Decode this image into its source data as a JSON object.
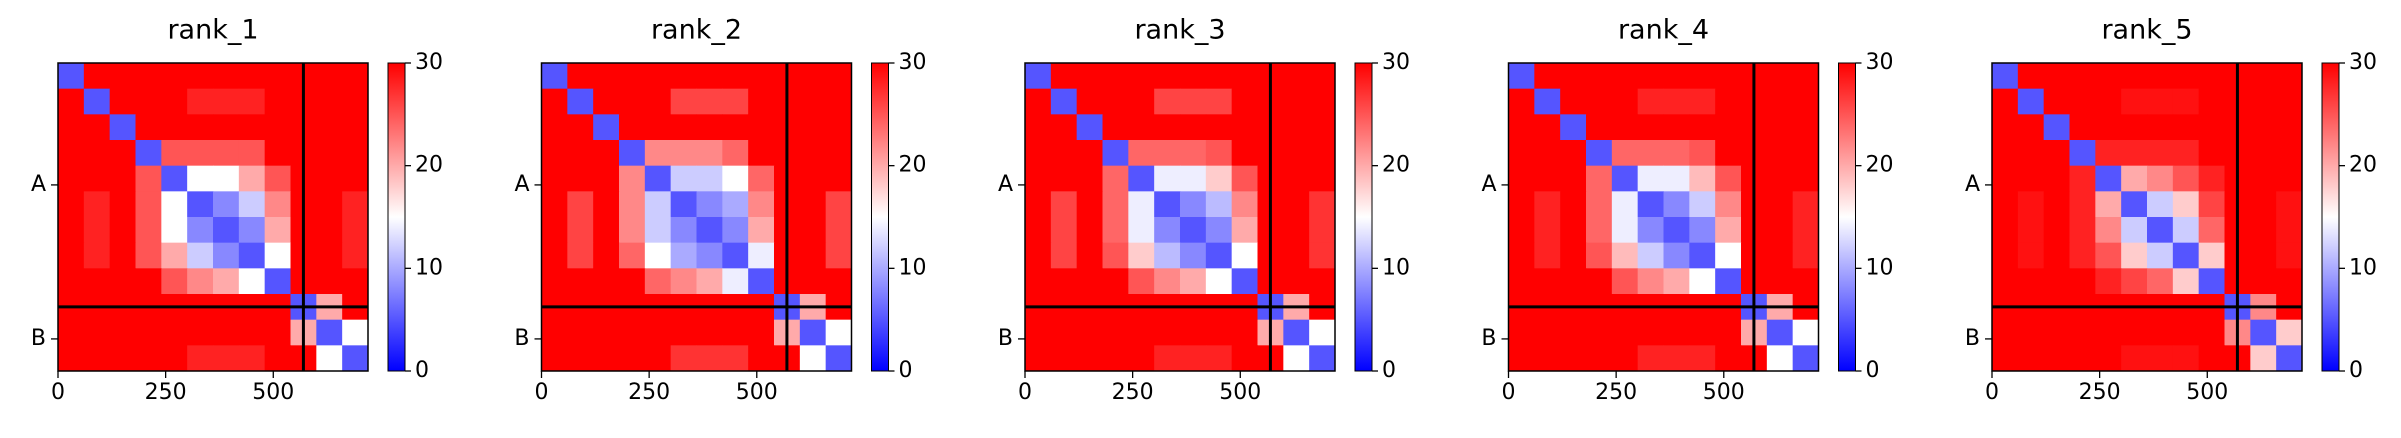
{
  "chart_data": [
    {
      "type": "heatmap",
      "title": "rank_1",
      "xlim": [
        0,
        720
      ],
      "ylim": [
        720,
        0
      ],
      "xticks": [
        0,
        250,
        500
      ],
      "yticks": [
        {
          "value": 285,
          "label": "A"
        },
        {
          "value": 645,
          "label": "B"
        }
      ],
      "chain_breaks": [
        570
      ],
      "colorbar": {
        "lim": [
          0,
          30
        ],
        "ticks": [
          0,
          10,
          20,
          30
        ],
        "colors": [
          "#0000ff",
          "#ffffff",
          "#ff0000"
        ]
      },
      "z": [
        [
          5,
          30,
          30,
          30,
          30,
          30,
          30,
          30,
          30,
          30,
          30,
          30
        ],
        [
          30,
          5,
          30,
          30,
          30,
          28,
          28,
          28,
          30,
          30,
          30,
          30
        ],
        [
          30,
          30,
          5,
          30,
          30,
          30,
          30,
          30,
          30,
          30,
          30,
          30
        ],
        [
          30,
          30,
          30,
          5,
          25,
          25,
          25,
          25,
          30,
          30,
          30,
          30
        ],
        [
          30,
          30,
          30,
          25,
          5,
          15,
          15,
          20,
          25,
          30,
          30,
          30
        ],
        [
          30,
          28,
          30,
          25,
          15,
          5,
          8,
          12,
          22,
          30,
          30,
          28
        ],
        [
          30,
          28,
          30,
          25,
          15,
          8,
          5,
          8,
          20,
          30,
          30,
          28
        ],
        [
          30,
          28,
          30,
          25,
          20,
          12,
          8,
          5,
          15,
          30,
          30,
          28
        ],
        [
          30,
          30,
          30,
          30,
          25,
          22,
          20,
          15,
          5,
          30,
          30,
          30
        ],
        [
          30,
          30,
          30,
          30,
          30,
          30,
          30,
          30,
          30,
          5,
          20,
          30
        ],
        [
          30,
          30,
          30,
          30,
          30,
          30,
          30,
          30,
          30,
          20,
          5,
          15
        ],
        [
          30,
          30,
          30,
          30,
          30,
          28,
          28,
          28,
          30,
          30,
          15,
          5
        ]
      ]
    },
    {
      "type": "heatmap",
      "title": "rank_2",
      "xlim": [
        0,
        720
      ],
      "ylim": [
        720,
        0
      ],
      "xticks": [
        0,
        250,
        500
      ],
      "yticks": [
        {
          "value": 285,
          "label": "A"
        },
        {
          "value": 645,
          "label": "B"
        }
      ],
      "chain_breaks": [
        570
      ],
      "colorbar": {
        "lim": [
          0,
          30
        ],
        "ticks": [
          0,
          10,
          20,
          30
        ],
        "colors": [
          "#0000ff",
          "#ffffff",
          "#ff0000"
        ]
      },
      "z": [
        [
          5,
          30,
          30,
          30,
          30,
          30,
          30,
          30,
          30,
          30,
          30,
          30
        ],
        [
          30,
          5,
          30,
          30,
          30,
          26,
          26,
          26,
          30,
          30,
          30,
          30
        ],
        [
          30,
          30,
          5,
          30,
          30,
          30,
          30,
          30,
          30,
          30,
          30,
          30
        ],
        [
          30,
          30,
          30,
          5,
          22,
          22,
          22,
          24,
          30,
          30,
          30,
          30
        ],
        [
          30,
          30,
          30,
          22,
          5,
          12,
          12,
          15,
          24,
          30,
          30,
          30
        ],
        [
          30,
          26,
          30,
          22,
          12,
          5,
          8,
          10,
          22,
          30,
          30,
          26
        ],
        [
          30,
          26,
          30,
          22,
          12,
          8,
          5,
          8,
          20,
          30,
          30,
          26
        ],
        [
          30,
          26,
          30,
          24,
          15,
          10,
          8,
          5,
          14,
          30,
          30,
          26
        ],
        [
          30,
          30,
          30,
          30,
          24,
          22,
          20,
          14,
          5,
          30,
          30,
          30
        ],
        [
          30,
          30,
          30,
          30,
          30,
          30,
          30,
          30,
          30,
          5,
          20,
          30
        ],
        [
          30,
          30,
          30,
          30,
          30,
          30,
          30,
          30,
          30,
          20,
          5,
          15
        ],
        [
          30,
          30,
          30,
          30,
          30,
          27,
          27,
          27,
          30,
          30,
          15,
          5
        ]
      ]
    },
    {
      "type": "heatmap",
      "title": "rank_3",
      "xlim": [
        0,
        720
      ],
      "ylim": [
        720,
        0
      ],
      "xticks": [
        0,
        250,
        500
      ],
      "yticks": [
        {
          "value": 285,
          "label": "A"
        },
        {
          "value": 645,
          "label": "B"
        }
      ],
      "chain_breaks": [
        570
      ],
      "colorbar": {
        "lim": [
          0,
          30
        ],
        "ticks": [
          0,
          10,
          20,
          30
        ],
        "colors": [
          "#0000ff",
          "#ffffff",
          "#ff0000"
        ]
      },
      "z": [
        [
          5,
          30,
          30,
          30,
          30,
          30,
          30,
          30,
          30,
          30,
          30,
          30
        ],
        [
          30,
          5,
          30,
          30,
          30,
          26,
          26,
          26,
          30,
          30,
          30,
          30
        ],
        [
          30,
          30,
          5,
          30,
          30,
          30,
          30,
          30,
          30,
          30,
          30,
          30
        ],
        [
          30,
          30,
          30,
          5,
          24,
          24,
          24,
          25,
          30,
          30,
          30,
          30
        ],
        [
          30,
          30,
          30,
          24,
          5,
          14,
          14,
          18,
          25,
          30,
          30,
          30
        ],
        [
          30,
          26,
          30,
          24,
          14,
          5,
          8,
          11,
          22,
          30,
          30,
          27
        ],
        [
          30,
          26,
          30,
          24,
          14,
          8,
          5,
          8,
          20,
          30,
          30,
          27
        ],
        [
          30,
          26,
          30,
          25,
          18,
          11,
          8,
          5,
          15,
          30,
          30,
          27
        ],
        [
          30,
          30,
          30,
          30,
          25,
          22,
          20,
          15,
          5,
          30,
          30,
          30
        ],
        [
          30,
          30,
          30,
          30,
          30,
          30,
          30,
          30,
          30,
          5,
          20,
          30
        ],
        [
          30,
          30,
          30,
          30,
          30,
          30,
          30,
          30,
          30,
          20,
          5,
          15
        ],
        [
          30,
          30,
          30,
          30,
          30,
          28,
          28,
          28,
          30,
          30,
          15,
          5
        ]
      ]
    },
    {
      "type": "heatmap",
      "title": "rank_4",
      "xlim": [
        0,
        720
      ],
      "ylim": [
        720,
        0
      ],
      "xticks": [
        0,
        250,
        500
      ],
      "yticks": [
        {
          "value": 285,
          "label": "A"
        },
        {
          "value": 645,
          "label": "B"
        }
      ],
      "chain_breaks": [
        570
      ],
      "colorbar": {
        "lim": [
          0,
          30
        ],
        "ticks": [
          0,
          10,
          20,
          30
        ],
        "colors": [
          "#0000ff",
          "#ffffff",
          "#ff0000"
        ]
      },
      "z": [
        [
          5,
          30,
          30,
          30,
          30,
          30,
          30,
          30,
          30,
          30,
          30,
          30
        ],
        [
          30,
          5,
          30,
          30,
          30,
          28,
          28,
          28,
          30,
          30,
          30,
          30
        ],
        [
          30,
          30,
          5,
          30,
          30,
          30,
          30,
          30,
          30,
          30,
          30,
          30
        ],
        [
          30,
          30,
          30,
          5,
          24,
          24,
          24,
          25,
          30,
          30,
          30,
          30
        ],
        [
          30,
          30,
          30,
          24,
          5,
          14,
          14,
          19,
          25,
          30,
          30,
          30
        ],
        [
          30,
          28,
          30,
          24,
          14,
          5,
          8,
          12,
          22,
          30,
          30,
          28
        ],
        [
          30,
          28,
          30,
          24,
          14,
          8,
          5,
          8,
          20,
          30,
          30,
          28
        ],
        [
          30,
          28,
          30,
          25,
          19,
          12,
          8,
          5,
          15,
          30,
          30,
          28
        ],
        [
          30,
          30,
          30,
          30,
          25,
          22,
          20,
          15,
          5,
          30,
          30,
          30
        ],
        [
          30,
          30,
          30,
          30,
          30,
          30,
          30,
          30,
          30,
          5,
          20,
          30
        ],
        [
          30,
          30,
          30,
          30,
          30,
          30,
          30,
          30,
          30,
          20,
          5,
          15
        ],
        [
          30,
          30,
          30,
          30,
          30,
          28,
          28,
          28,
          30,
          30,
          15,
          5
        ]
      ]
    },
    {
      "type": "heatmap",
      "title": "rank_5",
      "xlim": [
        0,
        720
      ],
      "ylim": [
        720,
        0
      ],
      "xticks": [
        0,
        250,
        500
      ],
      "yticks": [
        {
          "value": 285,
          "label": "A"
        },
        {
          "value": 645,
          "label": "B"
        }
      ],
      "chain_breaks": [
        570
      ],
      "colorbar": {
        "lim": [
          0,
          30
        ],
        "ticks": [
          0,
          10,
          20,
          30
        ],
        "colors": [
          "#0000ff",
          "#ffffff",
          "#ff0000"
        ]
      },
      "z": [
        [
          5,
          30,
          30,
          30,
          30,
          30,
          30,
          30,
          30,
          30,
          30,
          30
        ],
        [
          30,
          5,
          30,
          30,
          30,
          29,
          29,
          29,
          30,
          30,
          30,
          30
        ],
        [
          30,
          30,
          5,
          30,
          30,
          30,
          30,
          30,
          30,
          30,
          30,
          30
        ],
        [
          30,
          30,
          30,
          5,
          28,
          28,
          28,
          28,
          30,
          30,
          30,
          30
        ],
        [
          30,
          30,
          30,
          28,
          5,
          20,
          22,
          25,
          28,
          30,
          30,
          30
        ],
        [
          30,
          29,
          30,
          28,
          20,
          5,
          12,
          18,
          26,
          30,
          30,
          29
        ],
        [
          30,
          29,
          30,
          28,
          22,
          12,
          5,
          12,
          24,
          30,
          30,
          29
        ],
        [
          30,
          29,
          30,
          28,
          25,
          18,
          12,
          5,
          18,
          30,
          30,
          29
        ],
        [
          30,
          30,
          30,
          30,
          28,
          26,
          24,
          18,
          5,
          30,
          30,
          30
        ],
        [
          30,
          30,
          30,
          30,
          30,
          30,
          30,
          30,
          30,
          5,
          22,
          30
        ],
        [
          30,
          30,
          30,
          30,
          30,
          30,
          30,
          30,
          30,
          22,
          5,
          18
        ],
        [
          30,
          30,
          30,
          30,
          30,
          29,
          29,
          29,
          30,
          30,
          18,
          5
        ]
      ]
    }
  ]
}
